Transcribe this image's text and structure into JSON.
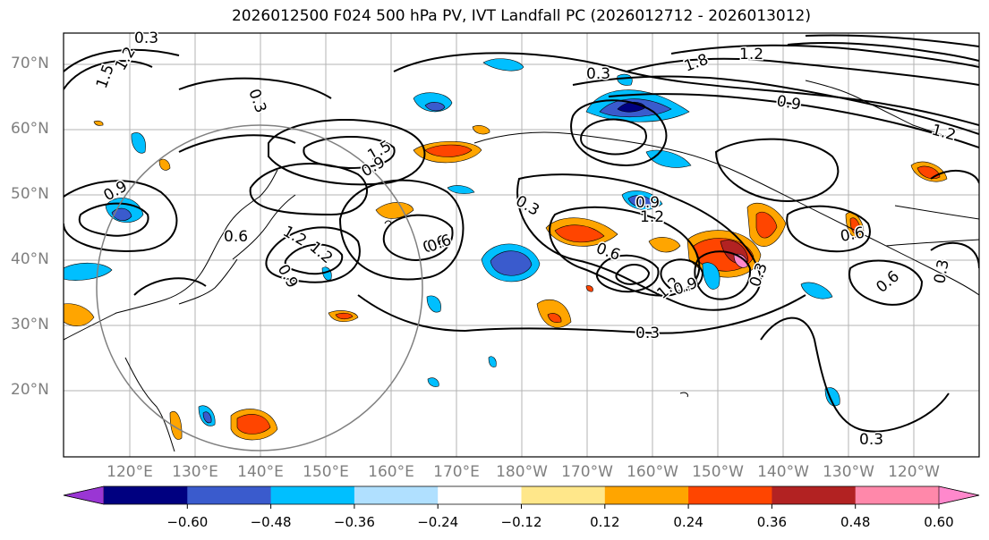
{
  "title": "2026012500 F024 500 hPa PV, IVT Landfall PC (2026012712 - 2026013012)",
  "lat_labels": [
    "70°N",
    "60°N",
    "50°N",
    "40°N",
    "30°N",
    "20°N"
  ],
  "lon_labels": [
    "120°E",
    "130°E",
    "140°E",
    "150°E",
    "160°E",
    "170°E",
    "180°W",
    "170°W",
    "160°W",
    "150°W",
    "140°W",
    "130°W",
    "120°W"
  ],
  "colorbar": {
    "ticks": [
      "−0.60",
      "−0.48",
      "−0.36",
      "−0.24",
      "−0.12",
      "0.12",
      "0.24",
      "0.36",
      "0.48",
      "0.60"
    ],
    "colors": [
      "#9a36d4",
      "#000080",
      "#3a5bcd",
      "#00bfff",
      "#b0e0ff",
      "#ffffff",
      "#ffe78a",
      "#ffa500",
      "#ff4500",
      "#b22222",
      "#ff88aa",
      "#ff88cc"
    ]
  },
  "contour_labels": [
    "0.3",
    "0.6",
    "0.9",
    "1.2",
    "1.5",
    "1.8"
  ],
  "map_labels": [
    {
      "text": "0.3"
    },
    {
      "text": "1.5"
    },
    {
      "text": "1.2"
    },
    {
      "text": "0.3"
    },
    {
      "text": "1.5"
    },
    {
      "text": "0.9"
    },
    {
      "text": "1.2"
    },
    {
      "text": "0.9"
    },
    {
      "text": "0.6"
    },
    {
      "text": "0.6"
    },
    {
      "text": "1.2"
    },
    {
      "text": "0.9"
    },
    {
      "text": "0.3"
    },
    {
      "text": "0.6"
    },
    {
      "text": "0.9"
    },
    {
      "text": "1.2"
    },
    {
      "text": "0.6"
    },
    {
      "text": "0.3"
    },
    {
      "text": "0.3"
    },
    {
      "text": "1.2"
    },
    {
      "text": "0.9"
    },
    {
      "text": "0.6"
    },
    {
      "text": "0.6"
    },
    {
      "text": "1.2"
    },
    {
      "text": "0.3"
    },
    {
      "text": "0.3"
    },
    {
      "text": "1.8"
    },
    {
      "text": "1.2"
    },
    {
      "text": "0.9"
    },
    {
      "text": "0.3"
    }
  ]
}
